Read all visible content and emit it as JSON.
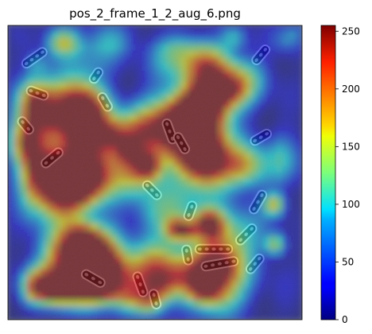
{
  "chart_data": {
    "type": "heatmap",
    "title": "pos_2_frame_1_2_aug_6.png",
    "xlabel": "",
    "ylabel": "",
    "colormap": "jet",
    "colorbar": {
      "range": [
        0,
        255
      ],
      "ticks": [
        0,
        50,
        100,
        150,
        200,
        250
      ],
      "tick_labels": [
        "0",
        "50",
        "100",
        "150",
        "200",
        "250"
      ]
    },
    "image": {
      "background": "grayscale phase-contrast microscopy image of rod-shaped bacterial cells",
      "overlay": "semi-transparent jet heatmap",
      "overlay_alpha": 0.45,
      "grid_cols": 46,
      "grid_rows": 46,
      "cells": [
        {
          "angle": -35,
          "len": 0.09,
          "cx": 0.09,
          "cy": 0.11
        },
        {
          "angle": 20,
          "len": 0.07,
          "cx": 0.1,
          "cy": 0.23
        },
        {
          "angle": 70,
          "len": 0.08,
          "cx": 0.55,
          "cy": 0.36
        },
        {
          "angle": 60,
          "len": 0.07,
          "cx": 0.59,
          "cy": 0.4
        },
        {
          "angle": -40,
          "len": 0.08,
          "cx": 0.15,
          "cy": 0.45
        },
        {
          "angle": 50,
          "len": 0.06,
          "cx": 0.06,
          "cy": 0.34
        },
        {
          "angle": -30,
          "len": 0.07,
          "cx": 0.86,
          "cy": 0.38
        },
        {
          "angle": -60,
          "len": 0.08,
          "cx": 0.85,
          "cy": 0.6
        },
        {
          "angle": 0,
          "len": 0.12,
          "cx": 0.7,
          "cy": 0.76
        },
        {
          "angle": -10,
          "len": 0.12,
          "cx": 0.72,
          "cy": 0.81
        },
        {
          "angle": 80,
          "len": 0.06,
          "cx": 0.61,
          "cy": 0.78
        },
        {
          "angle": -45,
          "len": 0.08,
          "cx": 0.81,
          "cy": 0.71
        },
        {
          "angle": -50,
          "len": 0.07,
          "cx": 0.84,
          "cy": 0.81
        },
        {
          "angle": 30,
          "len": 0.08,
          "cx": 0.29,
          "cy": 0.86
        },
        {
          "angle": 70,
          "len": 0.08,
          "cx": 0.45,
          "cy": 0.88
        },
        {
          "angle": 75,
          "len": 0.06,
          "cx": 0.5,
          "cy": 0.93
        },
        {
          "angle": -50,
          "len": 0.07,
          "cx": 0.86,
          "cy": 0.1
        },
        {
          "angle": -70,
          "len": 0.06,
          "cx": 0.62,
          "cy": 0.63
        },
        {
          "angle": 45,
          "len": 0.07,
          "cx": 0.49,
          "cy": 0.56
        },
        {
          "angle": 60,
          "len": 0.06,
          "cx": 0.33,
          "cy": 0.26
        },
        {
          "angle": -55,
          "len": 0.05,
          "cx": 0.3,
          "cy": 0.17
        }
      ]
    }
  }
}
